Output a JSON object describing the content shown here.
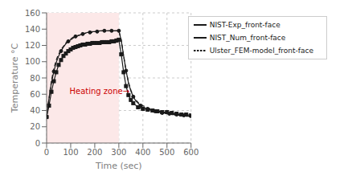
{
  "chart_data": {
    "type": "line",
    "xlabel": "Time (sec)",
    "ylabel": "Temperature °C",
    "xlim": [
      0,
      600
    ],
    "ylim": [
      0,
      160
    ],
    "xticks": [
      0,
      100,
      200,
      300,
      400,
      500,
      600
    ],
    "yticks": [
      0,
      20,
      40,
      60,
      80,
      100,
      120,
      140,
      160
    ],
    "grid": true,
    "legend": "upper right",
    "shaded_regions": [
      {
        "from": 0,
        "to": 300,
        "color": "#fce8e8"
      }
    ],
    "annotations": [
      {
        "text": "Heating zone→",
        "x": 95,
        "y": 64,
        "color": "#cc0000"
      }
    ],
    "series": [
      {
        "name": "Ulster_FEM-model_front-face",
        "color": "#1a1a1a",
        "line_style": "dashed",
        "marker": "none",
        "x": [
          0,
          5,
          10,
          15,
          20,
          25,
          30,
          35,
          40,
          45,
          50,
          55,
          60,
          70,
          80,
          90,
          100,
          110,
          120,
          130,
          140,
          150,
          160,
          170,
          180,
          190,
          200,
          210,
          220,
          230,
          240,
          250,
          260,
          270,
          280,
          290,
          300,
          310,
          320,
          330,
          340,
          350,
          360,
          370,
          380,
          390,
          400,
          420,
          440,
          460,
          480,
          500,
          520,
          540,
          560,
          580,
          600
        ],
        "values": [
          32,
          44,
          55,
          66,
          76,
          84,
          91,
          97,
          102,
          106,
          109,
          112,
          115,
          119,
          123,
          126,
          128,
          130,
          131,
          132,
          133,
          134,
          135,
          135,
          136,
          136,
          137,
          137,
          137,
          138,
          138,
          138,
          138,
          138,
          138,
          138,
          138,
          127,
          107,
          89,
          75,
          65,
          58,
          53,
          50,
          48,
          46,
          43,
          41,
          40,
          38,
          37,
          36,
          36,
          35,
          34,
          33
        ]
      },
      {
        "name": "NIST_Num_front-face",
        "color": "#1a1a1a",
        "line_style": "solid",
        "marker": "circle",
        "x": [
          0,
          10,
          20,
          30,
          40,
          50,
          60,
          70,
          80,
          90,
          100,
          110,
          120,
          130,
          140,
          150,
          160,
          170,
          180,
          190,
          200,
          210,
          220,
          230,
          240,
          250,
          260,
          270,
          280,
          290,
          300,
          310,
          320,
          330,
          340,
          350,
          360,
          370,
          380,
          390,
          400,
          410,
          420,
          430,
          440,
          450,
          460,
          470,
          480,
          490,
          500,
          510,
          520,
          530,
          540,
          550,
          560,
          570,
          580,
          590,
          600
        ],
        "values": [
          32,
          55,
          74,
          88,
          99,
          107,
          113,
          118,
          122,
          125,
          127,
          129,
          131,
          132,
          133,
          134,
          135,
          136,
          136,
          137,
          137,
          137,
          138,
          138,
          138,
          138,
          138,
          138,
          138,
          138,
          138,
          126,
          107,
          89,
          74,
          64,
          57,
          52,
          49,
          46,
          44,
          43,
          42,
          41,
          40,
          39,
          38,
          38,
          37,
          37,
          36,
          36,
          35,
          35,
          35,
          34,
          34,
          34,
          33,
          33,
          33
        ]
      },
      {
        "name": "NIST-Exp_front-face",
        "color": "#1a1a1a",
        "line_style": "solid",
        "marker": "square",
        "x": [
          0,
          10,
          20,
          30,
          40,
          50,
          60,
          70,
          80,
          90,
          100,
          110,
          120,
          130,
          140,
          150,
          160,
          170,
          180,
          190,
          200,
          210,
          220,
          230,
          240,
          250,
          260,
          270,
          280,
          290,
          300,
          310,
          320,
          330,
          340,
          350,
          360,
          380,
          400,
          420,
          440,
          460,
          480,
          500,
          520,
          540,
          560,
          580,
          600
        ],
        "values": [
          32,
          46,
          63,
          76,
          87,
          96,
          102,
          107,
          110,
          113,
          115,
          117,
          118,
          119,
          120,
          121,
          121,
          122,
          122,
          123,
          123,
          123,
          123,
          124,
          124,
          124,
          124,
          125,
          125,
          126,
          127,
          109,
          87,
          70,
          59,
          53,
          49,
          44,
          42,
          41,
          40,
          39,
          38,
          38,
          37,
          36,
          35,
          35,
          34
        ]
      }
    ]
  }
}
